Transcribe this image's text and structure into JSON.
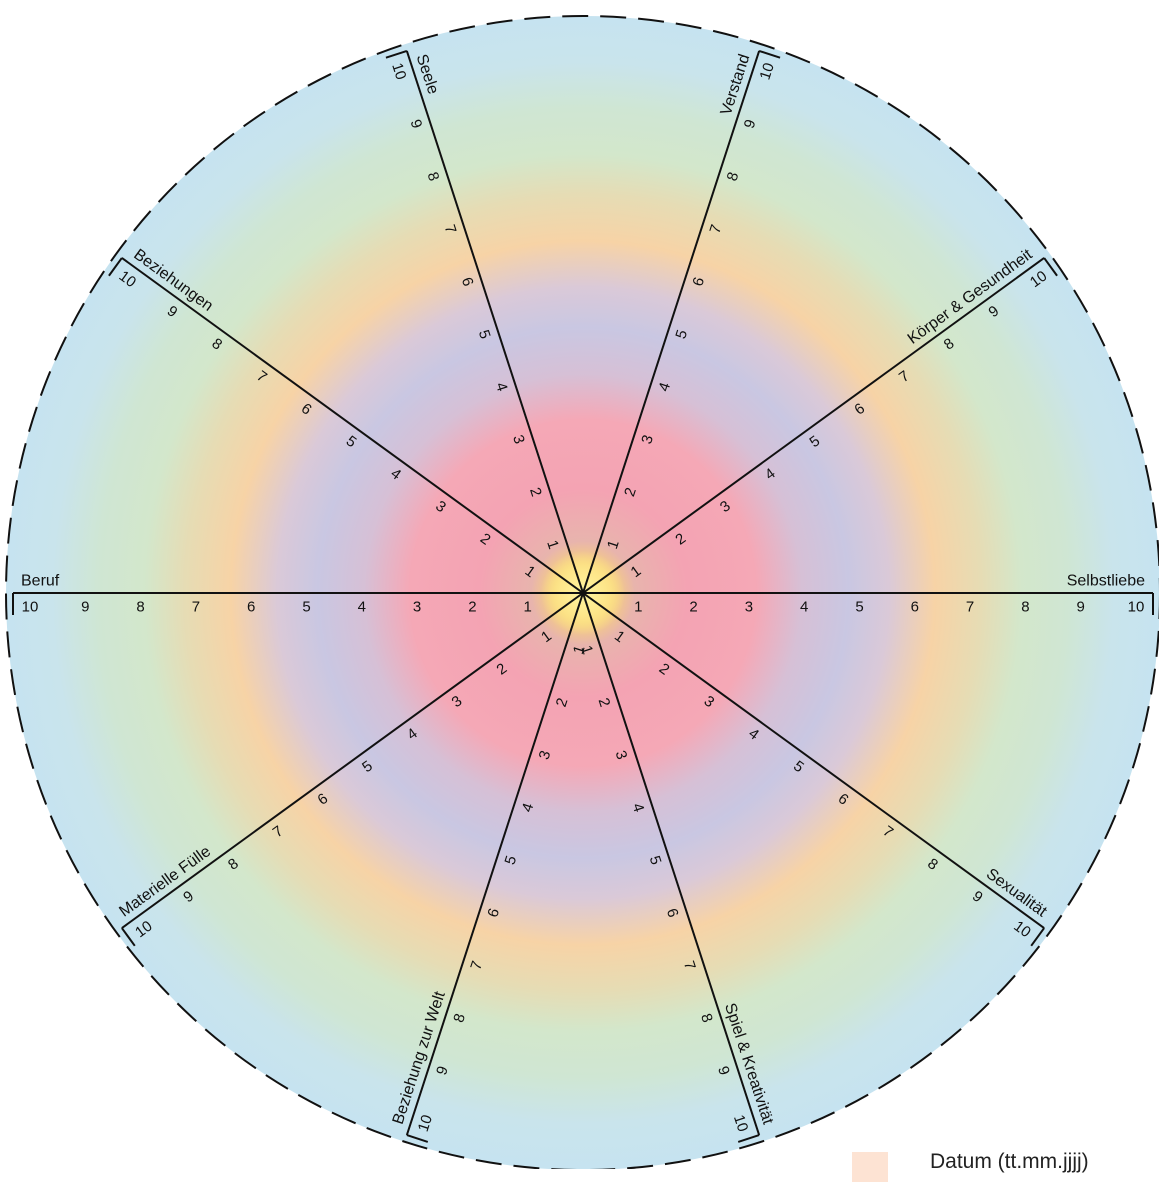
{
  "wheel": {
    "scale": [
      "1",
      "2",
      "3",
      "4",
      "5",
      "6",
      "7",
      "8",
      "9",
      "10"
    ],
    "axes": [
      {
        "label": "Selbstliebe"
      },
      {
        "label": "Körper & Gesundheit"
      },
      {
        "label": "Verstand"
      },
      {
        "label": "Seele"
      },
      {
        "label": "Beziehungen"
      },
      {
        "label": "Beruf"
      },
      {
        "label": "Materielle Fülle"
      },
      {
        "label": "Beziehung zur Welt"
      },
      {
        "label": "Spiel & Kreativität"
      },
      {
        "label": "Sexualität"
      }
    ],
    "colors": {
      "ring_blue": "#c9e5f0",
      "ring_green": "#d2e8c8",
      "ring_orange": "#f8d2a4",
      "ring_lavender": "#cdc7e2",
      "ring_pink": "#f4a7b6",
      "center": "#fbe27a",
      "line": "#111111"
    }
  },
  "legend": {
    "label": "Datum (tt.mm.jjjj)",
    "swatch_color": "#fde3d3"
  }
}
